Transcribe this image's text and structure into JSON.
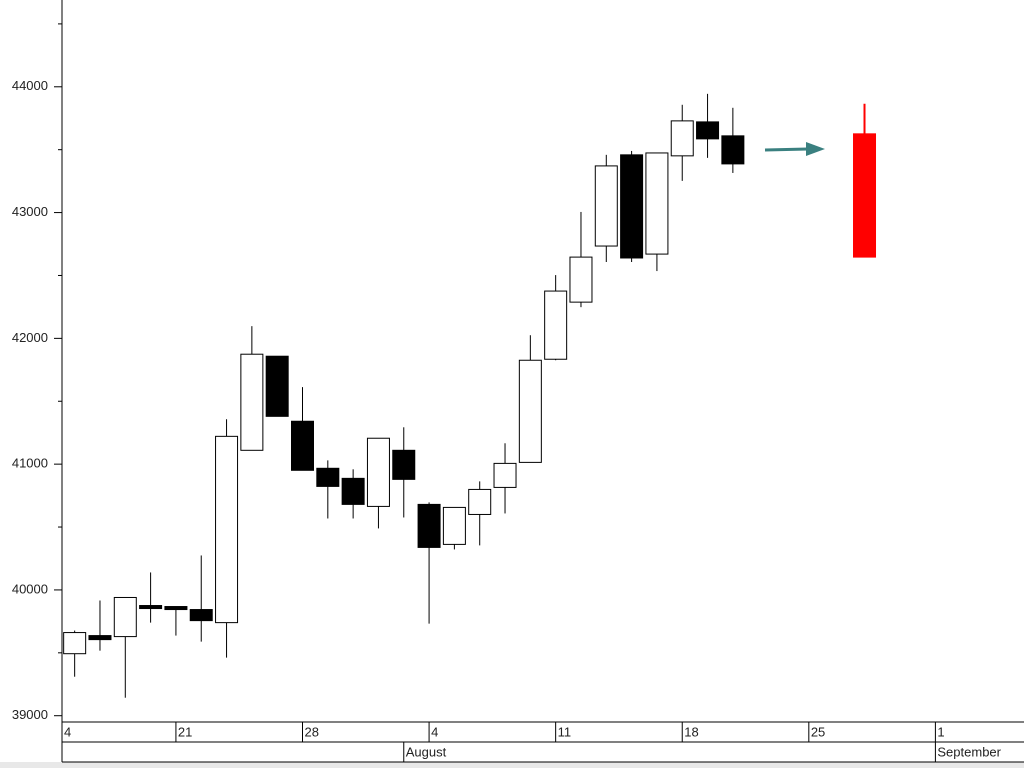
{
  "chart_data": {
    "type": "candlestick",
    "candles": [
      {
        "x": 0,
        "open": 39493,
        "high": 39677,
        "low": 39310,
        "close": 39661
      },
      {
        "x": 1,
        "open": 39637,
        "high": 39916,
        "low": 39517,
        "close": 39605
      },
      {
        "x": 2,
        "open": 39629,
        "high": 39940,
        "low": 39143,
        "close": 39940
      },
      {
        "x": 3,
        "open": 39876,
        "high": 40139,
        "low": 39740,
        "close": 39852
      },
      {
        "x": 4,
        "open": 39868,
        "high": 39868,
        "low": 39637,
        "close": 39844
      },
      {
        "x": 5,
        "open": 39844,
        "high": 40274,
        "low": 39589,
        "close": 39756
      },
      {
        "x": 6,
        "open": 39740,
        "high": 41357,
        "low": 39462,
        "close": 41221
      },
      {
        "x": 7,
        "open": 41110,
        "high": 42097,
        "low": 41110,
        "close": 41874
      },
      {
        "x": 8,
        "open": 41858,
        "high": 41858,
        "low": 41380,
        "close": 41380
      },
      {
        "x": 9,
        "open": 41341,
        "high": 41612,
        "low": 40951,
        "close": 40951
      },
      {
        "x": 10,
        "open": 40967,
        "high": 41030,
        "low": 40568,
        "close": 40823
      },
      {
        "x": 11,
        "open": 40887,
        "high": 40959,
        "low": 40568,
        "close": 40680
      },
      {
        "x": 12,
        "open": 40664,
        "high": 41206,
        "low": 40489,
        "close": 41206
      },
      {
        "x": 13,
        "open": 41110,
        "high": 41293,
        "low": 40576,
        "close": 40879
      },
      {
        "x": 14,
        "open": 40680,
        "high": 40696,
        "low": 39732,
        "close": 40338
      },
      {
        "x": 15,
        "open": 40362,
        "high": 40656,
        "low": 40322,
        "close": 40656
      },
      {
        "x": 16,
        "open": 40600,
        "high": 40863,
        "low": 40354,
        "close": 40799
      },
      {
        "x": 17,
        "open": 40815,
        "high": 41166,
        "low": 40608,
        "close": 41006
      },
      {
        "x": 18,
        "open": 41014,
        "high": 42025,
        "low": 41014,
        "close": 41826
      },
      {
        "x": 19,
        "open": 41834,
        "high": 42503,
        "low": 41826,
        "close": 42376
      },
      {
        "x": 20,
        "open": 42288,
        "high": 43005,
        "low": 42248,
        "close": 42646
      },
      {
        "x": 21,
        "open": 42734,
        "high": 43459,
        "low": 42607,
        "close": 43371
      },
      {
        "x": 22,
        "open": 43459,
        "high": 43490,
        "low": 42607,
        "close": 42639
      },
      {
        "x": 23,
        "open": 42670,
        "high": 43474,
        "low": 42535,
        "close": 43474
      },
      {
        "x": 24,
        "open": 43451,
        "high": 43857,
        "low": 43252,
        "close": 43729
      },
      {
        "x": 25,
        "open": 43721,
        "high": 43944,
        "low": 43435,
        "close": 43586
      },
      {
        "x": 26,
        "open": 43610,
        "high": 43833,
        "low": 43315,
        "close": 43387
      }
    ],
    "projection": {
      "x": 31.2,
      "open": 43626,
      "high": 43865,
      "low": 42646,
      "close": 42646,
      "color": "#ff0000"
    },
    "up_color": "#ffffff",
    "down_color": "#000000",
    "xlim": [
      -0.5,
      37.5
    ],
    "ylim": [
      38950,
      44690
    ],
    "yticks": [
      39000,
      40000,
      41000,
      42000,
      43000,
      44000
    ],
    "yminorticks": [
      39500,
      40500,
      41500,
      42500,
      43500,
      44500
    ],
    "xticks": [
      {
        "value": -0.5,
        "label": "4"
      },
      {
        "value": 4,
        "label": "21"
      },
      {
        "value": 9,
        "label": "28"
      },
      {
        "value": 14,
        "label": "4"
      },
      {
        "value": 19,
        "label": "11"
      },
      {
        "value": 24,
        "label": "18"
      },
      {
        "value": 29,
        "label": "25"
      },
      {
        "value": 34,
        "label": "1"
      }
    ],
    "months": [
      {
        "value": 13,
        "label": "August"
      },
      {
        "value": 34,
        "label": "September"
      }
    ]
  }
}
